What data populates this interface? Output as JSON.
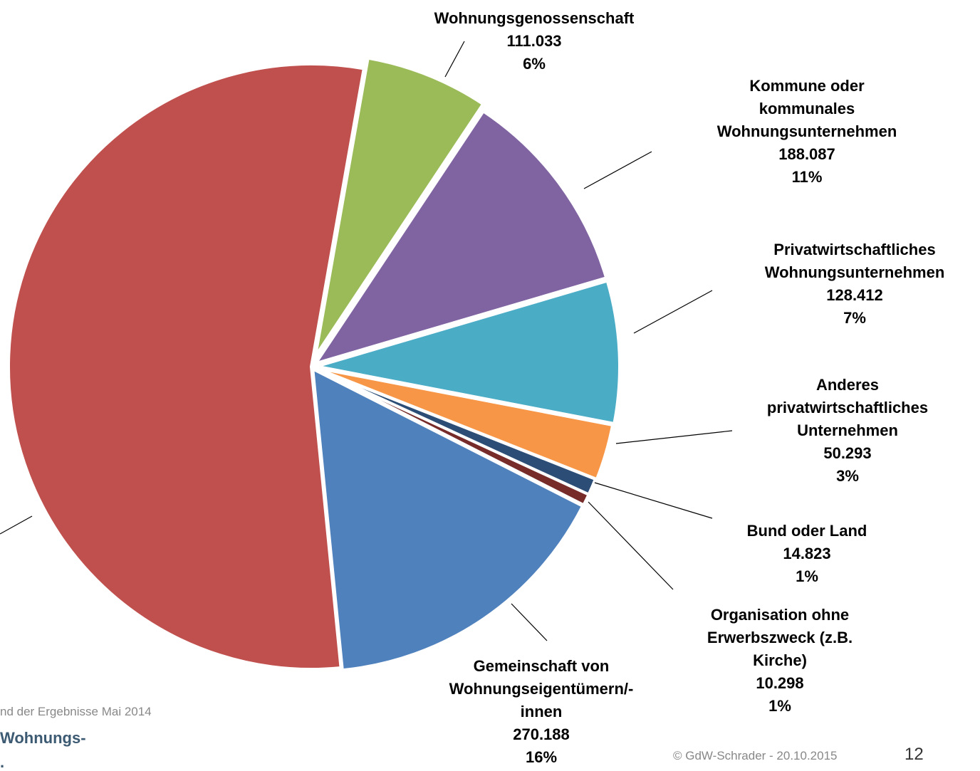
{
  "chart_data": {
    "type": "pie",
    "categories": [
      "Wohnungsgenossenschaft",
      "Kommune oder\nkommunales\nWohnungsunternehmen",
      "Privatwirtschaftliches\nWohnungsunternehmen",
      "Anderes\nprivatwirtschaftliches\nUnternehmen",
      "Bund oder Land",
      "Organisation ohne\nErwerbszweck (z.B.\nKirche)",
      "Gemeinschaft von\nWohnungseigentümern/-\ninnen",
      null
    ],
    "values": [
      111033,
      188087,
      128412,
      50293,
      14823,
      10298,
      270188,
      920000
    ],
    "value_labels": [
      "111.033",
      "188.087",
      "128.412",
      "50.293",
      "14.823",
      "10.298",
      "270.188",
      null
    ],
    "percent_labels": [
      "6%",
      "11%",
      "7%",
      "3%",
      "1%",
      "1%",
      "16%",
      null
    ],
    "colors": [
      "#9bbb59",
      "#8064a2",
      "#4bacc6",
      "#f79646",
      "#2c4d75",
      "#772c2a",
      "#4f81bd",
      "#c0504d"
    ]
  },
  "footer": {
    "source": "nd der Ergebnisse Mai 2014",
    "org_line1": "Wohnungs-",
    "org_line2": ".",
    "copyright": "©  GdW-Schrader  - 20.10.2015",
    "page": "12"
  }
}
